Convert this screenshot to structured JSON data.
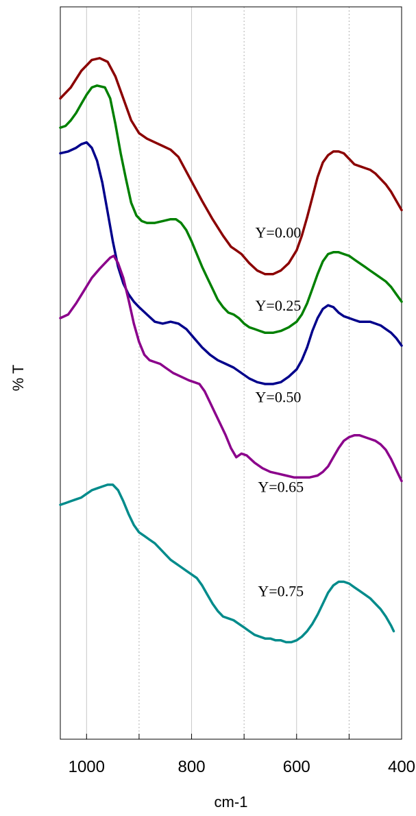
{
  "chart_data": {
    "type": "line",
    "xlabel": "cm-1",
    "ylabel": "% T",
    "xlim": [
      1050,
      400
    ],
    "x_reversed": true,
    "x_ticks": [
      1000,
      800,
      600,
      400
    ],
    "x_minor_gridlines": [
      900,
      700,
      500
    ],
    "y_ticks": [],
    "grid": "vertical",
    "legend": "none",
    "series": [
      {
        "label": "Y=0.00",
        "color": "#8b0000",
        "x": [
          1050,
          1030,
          1010,
          990,
          975,
          960,
          945,
          930,
          915,
          900,
          885,
          870,
          855,
          840,
          825,
          810,
          795,
          780,
          760,
          740,
          725,
          715,
          705,
          690,
          675,
          660,
          645,
          630,
          615,
          600,
          590,
          580,
          570,
          560,
          550,
          540,
          530,
          520,
          510,
          500,
          490,
          480,
          470,
          460,
          450,
          440,
          430,
          420,
          410,
          400
        ],
        "y": [
          75.0,
          78.0,
          82.5,
          85.5,
          86.0,
          85.0,
          81.0,
          75.0,
          69.0,
          65.5,
          64.0,
          63.0,
          62.0,
          61.0,
          59.0,
          55.0,
          51.0,
          47.0,
          42.0,
          37.5,
          34.5,
          33.5,
          32.5,
          30.0,
          28.0,
          27.0,
          27.0,
          28.0,
          30.0,
          33.5,
          37.5,
          42.5,
          48.0,
          53.5,
          57.5,
          59.5,
          60.5,
          60.5,
          60.0,
          58.5,
          57.0,
          56.5,
          56.0,
          55.5,
          54.5,
          53.0,
          51.5,
          49.5,
          47.0,
          44.5
        ],
        "label_at": [
          635,
          37.0
        ]
      },
      {
        "label": "Y=0.25",
        "color": "#008000",
        "x": [
          1050,
          1040,
          1030,
          1020,
          1010,
          1000,
          990,
          980,
          965,
          955,
          945,
          935,
          925,
          915,
          905,
          895,
          885,
          870,
          855,
          840,
          830,
          820,
          810,
          800,
          790,
          780,
          770,
          760,
          750,
          740,
          730,
          720,
          710,
          700,
          690,
          680,
          670,
          660,
          645,
          630,
          615,
          600,
          590,
          580,
          570,
          560,
          550,
          540,
          530,
          520,
          510,
          500,
          490,
          480,
          470,
          460,
          450,
          440,
          430,
          420,
          410,
          400
        ],
        "y": [
          67.0,
          67.5,
          69.0,
          71.0,
          73.5,
          76.0,
          78.0,
          78.5,
          78.0,
          75.0,
          68.0,
          60.0,
          53.0,
          46.5,
          43.0,
          41.5,
          41.0,
          41.0,
          41.5,
          42.0,
          42.0,
          41.0,
          39.0,
          36.0,
          32.5,
          29.0,
          26.0,
          23.0,
          20.0,
          18.0,
          16.5,
          16.0,
          15.0,
          13.5,
          12.5,
          12.0,
          11.5,
          11.0,
          11.0,
          11.5,
          12.5,
          14.0,
          16.0,
          19.0,
          23.0,
          27.0,
          30.5,
          32.5,
          33.0,
          33.0,
          32.5,
          32.0,
          31.0,
          30.0,
          29.0,
          28.0,
          27.0,
          26.0,
          25.0,
          23.5,
          21.5,
          19.5
        ],
        "label_at": [
          635,
          17.0
        ]
      },
      {
        "label": "Y=0.50",
        "color": "#00008b",
        "x": [
          1050,
          1035,
          1020,
          1010,
          1000,
          990,
          980,
          970,
          960,
          950,
          940,
          930,
          920,
          910,
          900,
          885,
          870,
          855,
          840,
          825,
          810,
          795,
          780,
          765,
          750,
          735,
          720,
          705,
          690,
          675,
          660,
          645,
          630,
          615,
          600,
          590,
          580,
          570,
          560,
          550,
          540,
          530,
          520,
          510,
          500,
          490,
          480,
          470,
          460,
          450,
          440,
          430,
          420,
          410,
          400
        ],
        "y": [
          60.0,
          60.5,
          61.5,
          62.5,
          63.0,
          61.5,
          58.0,
          52.0,
          44.0,
          36.0,
          29.0,
          24.5,
          21.5,
          19.5,
          18.0,
          16.0,
          14.0,
          13.5,
          14.0,
          13.5,
          12.0,
          9.5,
          7.0,
          5.0,
          3.5,
          2.5,
          1.5,
          0.0,
          -1.5,
          -2.5,
          -3.0,
          -3.0,
          -2.5,
          -1.0,
          1.0,
          3.5,
          7.0,
          11.5,
          15.0,
          17.5,
          18.5,
          18.0,
          16.5,
          15.5,
          15.0,
          14.5,
          14.0,
          14.0,
          14.0,
          13.5,
          13.0,
          12.0,
          11.0,
          9.5,
          7.5
        ],
        "label_at": [
          635,
          -8.0
        ]
      },
      {
        "label": "Y=0.65",
        "color": "#8b008b",
        "x": [
          1050,
          1035,
          1020,
          1005,
          990,
          975,
          965,
          955,
          948,
          940,
          930,
          920,
          910,
          900,
          890,
          880,
          870,
          860,
          850,
          835,
          820,
          805,
          795,
          785,
          775,
          765,
          755,
          745,
          735,
          725,
          715,
          705,
          695,
          680,
          665,
          650,
          635,
          620,
          605,
          590,
          575,
          560,
          550,
          540,
          530,
          520,
          510,
          500,
          490,
          480,
          470,
          460,
          450,
          440,
          430,
          420,
          410,
          400
        ],
        "y": [
          15.0,
          16.0,
          19.0,
          22.5,
          26.0,
          28.5,
          30.0,
          31.5,
          32.0,
          30.0,
          26.0,
          20.0,
          13.5,
          8.5,
          5.0,
          3.5,
          3.0,
          2.5,
          1.5,
          0.0,
          -1.0,
          -2.0,
          -2.5,
          -3.0,
          -5.0,
          -8.0,
          -11.0,
          -14.0,
          -17.0,
          -20.5,
          -23.0,
          -22.0,
          -22.5,
          -24.5,
          -26.0,
          -27.0,
          -27.5,
          -28.0,
          -28.5,
          -28.5,
          -28.5,
          -28.0,
          -27.0,
          -25.5,
          -23.0,
          -20.5,
          -18.5,
          -17.5,
          -17.0,
          -17.0,
          -17.5,
          -18.0,
          -18.5,
          -19.5,
          -21.0,
          -23.5,
          -26.5,
          -29.5
        ],
        "label_at": [
          630,
          -32.5
        ]
      },
      {
        "label": "Y=0.75",
        "color": "#008b8b",
        "x": [
          1050,
          1040,
          1030,
          1020,
          1010,
          1000,
          990,
          980,
          970,
          960,
          950,
          940,
          930,
          920,
          910,
          900,
          890,
          880,
          870,
          860,
          850,
          840,
          830,
          820,
          810,
          800,
          790,
          780,
          770,
          760,
          750,
          740,
          730,
          720,
          710,
          700,
          690,
          680,
          670,
          660,
          650,
          640,
          630,
          620,
          610,
          600,
          590,
          580,
          570,
          560,
          550,
          540,
          530,
          520,
          510,
          500,
          490,
          480,
          470,
          460,
          450,
          440,
          430,
          420,
          415
        ],
        "y": [
          -36.0,
          -35.5,
          -35.0,
          -34.5,
          -34.0,
          -33.0,
          -32.0,
          -31.5,
          -31.0,
          -30.5,
          -30.5,
          -32.0,
          -35.0,
          -38.5,
          -41.5,
          -43.5,
          -44.5,
          -45.5,
          -46.5,
          -48.0,
          -49.5,
          -51.0,
          -52.0,
          -53.0,
          -54.0,
          -55.0,
          -56.0,
          -58.0,
          -60.5,
          -63.0,
          -65.0,
          -66.5,
          -67.0,
          -67.5,
          -68.5,
          -69.5,
          -70.5,
          -71.5,
          -72.0,
          -72.5,
          -72.5,
          -73.0,
          -73.0,
          -73.5,
          -73.5,
          -73.0,
          -72.0,
          -70.5,
          -68.5,
          -66.0,
          -63.0,
          -60.0,
          -58.0,
          -57.0,
          -57.0,
          -57.5,
          -58.5,
          -59.5,
          -60.5,
          -61.5,
          -63.0,
          -64.5,
          -66.5,
          -69.0,
          -70.5
        ],
        "label_at": [
          630,
          -61.0
        ]
      }
    ]
  }
}
